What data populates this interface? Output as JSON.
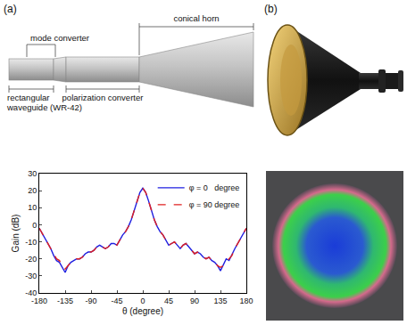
{
  "chart_data": {
    "type": "line",
    "x_label": "θ (degree)",
    "y_label": "Gain (dB)",
    "x": [
      -180,
      -175,
      -170,
      -165,
      -160,
      -155,
      -150,
      -145,
      -140,
      -135,
      -130,
      -125,
      -120,
      -115,
      -110,
      -105,
      -100,
      -95,
      -90,
      -85,
      -80,
      -75,
      -70,
      -65,
      -60,
      -55,
      -50,
      -45,
      -40,
      -35,
      -30,
      -25,
      -20,
      -15,
      -10,
      -5,
      0,
      5,
      10,
      15,
      20,
      25,
      30,
      35,
      40,
      45,
      50,
      55,
      60,
      65,
      70,
      75,
      80,
      85,
      90,
      95,
      100,
      105,
      110,
      115,
      120,
      125,
      130,
      135,
      140,
      145,
      150,
      155,
      160,
      165,
      170,
      175,
      180
    ],
    "series": [
      {
        "name": "φ = 0   degree",
        "color": "#1f1fe0",
        "line_style": "solid",
        "values": [
          -2,
          -5,
          -8,
          -11,
          -14,
          -18,
          -21,
          -22,
          -25,
          -28,
          -24,
          -22,
          -21,
          -20,
          -20,
          -19,
          -17,
          -16,
          -16,
          -15,
          -13,
          -12,
          -13,
          -14,
          -13,
          -11,
          -11,
          -12,
          -9,
          -6,
          -4,
          -1,
          3,
          8,
          14,
          19,
          21.5,
          19,
          14,
          8,
          3,
          -1,
          -4,
          -6,
          -9,
          -12,
          -11,
          -10,
          -12,
          -14,
          -12,
          -11,
          -13,
          -15,
          -17,
          -16,
          -17,
          -19,
          -20,
          -19,
          -21,
          -22,
          -24,
          -27,
          -23,
          -20,
          -21,
          -17,
          -14,
          -11,
          -8,
          -5,
          -2
        ]
      },
      {
        "name": "φ = 90 degree",
        "color": "#e02020",
        "line_style": "dashed",
        "values": [
          -2,
          -5,
          -8,
          -11,
          -14,
          -17,
          -20,
          -21,
          -24,
          -26,
          -24,
          -22,
          -21,
          -20,
          -20,
          -19,
          -17,
          -16,
          -16,
          -15,
          -13,
          -12,
          -13,
          -14,
          -13,
          -11,
          -11,
          -12,
          -9,
          -6,
          -4,
          -1,
          3,
          8,
          14,
          19,
          21.5,
          19,
          14,
          8,
          3,
          -1,
          -4,
          -6,
          -9,
          -12,
          -11,
          -10,
          -12,
          -14,
          -12,
          -11,
          -13,
          -15,
          -17,
          -16,
          -17,
          -19,
          -20,
          -19,
          -21,
          -22,
          -24,
          -25,
          -24,
          -22,
          -20,
          -18,
          -14,
          -11,
          -8,
          -5,
          -2
        ]
      }
    ],
    "xlim": [
      -180,
      180
    ],
    "xticks": [
      -180,
      -135,
      -90,
      -45,
      0,
      45,
      90,
      135,
      180
    ],
    "ylim": [
      -40,
      30
    ],
    "yticks": [
      -40,
      -30,
      -20,
      -10,
      0,
      10,
      20,
      30
    ],
    "grid": false,
    "legend": "top right"
  },
  "diagram": {
    "panel_label": "(a)",
    "labels": {
      "mode_converter": "mode converter",
      "conical_horn": "conical horn",
      "waveguide": [
        "rectangular",
        "waveguide (WR-42)"
      ],
      "polarization_converter": "polarization converter"
    }
  },
  "photo": {
    "panel_label": "(b)"
  }
}
